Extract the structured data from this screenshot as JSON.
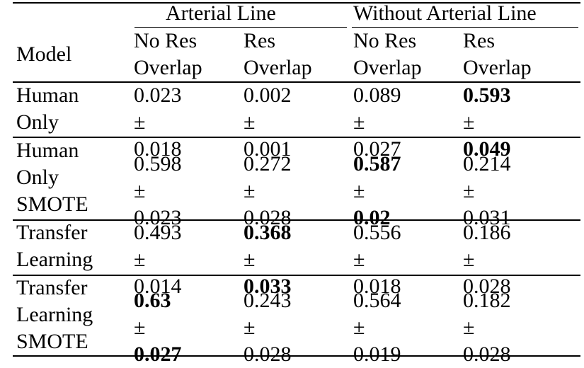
{
  "table": {
    "group_headers": [
      "Arterial Line",
      "Without Arterial Line"
    ],
    "model_header": "Model",
    "sub_headers": [
      [
        "No Res",
        "Overlap"
      ],
      [
        "Res",
        "Overlap"
      ],
      [
        "No Res",
        "Overlap"
      ],
      [
        "Res",
        "Overlap"
      ]
    ],
    "pm_symbol": "±",
    "rows": [
      {
        "model": [
          "Human",
          "Only"
        ],
        "cells": [
          {
            "mean": "0.023",
            "sd": "0.018",
            "mean_bold": false,
            "sd_bold": false
          },
          {
            "mean": "0.002",
            "sd": "0.001",
            "mean_bold": false,
            "sd_bold": false
          },
          {
            "mean": "0.089",
            "sd": "0.027",
            "mean_bold": false,
            "sd_bold": false
          },
          {
            "mean": "0.593",
            "sd": "0.049",
            "mean_bold": true,
            "sd_bold": true
          }
        ]
      },
      {
        "model": [
          "Human",
          "Only",
          "SMOTE"
        ],
        "cells": [
          {
            "mean": "0.598",
            "sd": "0.023",
            "mean_bold": false,
            "sd_bold": false
          },
          {
            "mean": "0.272",
            "sd": "0.028",
            "mean_bold": false,
            "sd_bold": false
          },
          {
            "mean": "0.587",
            "sd": "0.02",
            "mean_bold": true,
            "sd_bold": true
          },
          {
            "mean": "0.214",
            "sd": "0.031",
            "mean_bold": false,
            "sd_bold": false
          }
        ]
      },
      {
        "model": [
          "Transfer",
          "Learning"
        ],
        "cells": [
          {
            "mean": "0.493",
            "sd": "0.014",
            "mean_bold": false,
            "sd_bold": false
          },
          {
            "mean": "0.368",
            "sd": "0.033",
            "mean_bold": true,
            "sd_bold": true
          },
          {
            "mean": "0.556",
            "sd": "0.018",
            "mean_bold": false,
            "sd_bold": false
          },
          {
            "mean": "0.186",
            "sd": "0.028",
            "mean_bold": false,
            "sd_bold": false
          }
        ]
      },
      {
        "model": [
          "Transfer",
          "Learning",
          "SMOTE"
        ],
        "cells": [
          {
            "mean": "0.63",
            "sd": "0.027",
            "mean_bold": true,
            "sd_bold": true
          },
          {
            "mean": "0.243",
            "sd": "0.028",
            "mean_bold": false,
            "sd_bold": false
          },
          {
            "mean": "0.564",
            "sd": "0.019",
            "mean_bold": false,
            "sd_bold": false
          },
          {
            "mean": "0.182",
            "sd": "0.028",
            "mean_bold": false,
            "sd_bold": false
          }
        ]
      }
    ]
  }
}
